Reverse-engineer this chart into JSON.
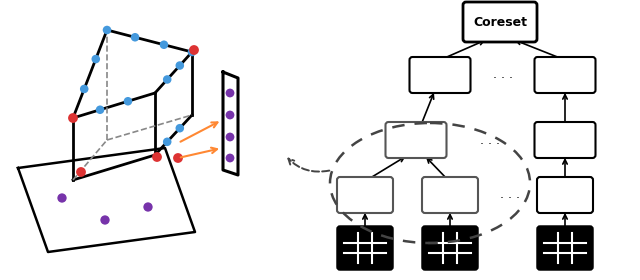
{
  "bg_color": "#ffffff",
  "blue": "#4499dd",
  "red": "#dd3333",
  "purple": "#7733aa",
  "orange": "#ff8833",
  "black": "#000000",
  "gray": "#666666",
  "dash_color": "#444444"
}
